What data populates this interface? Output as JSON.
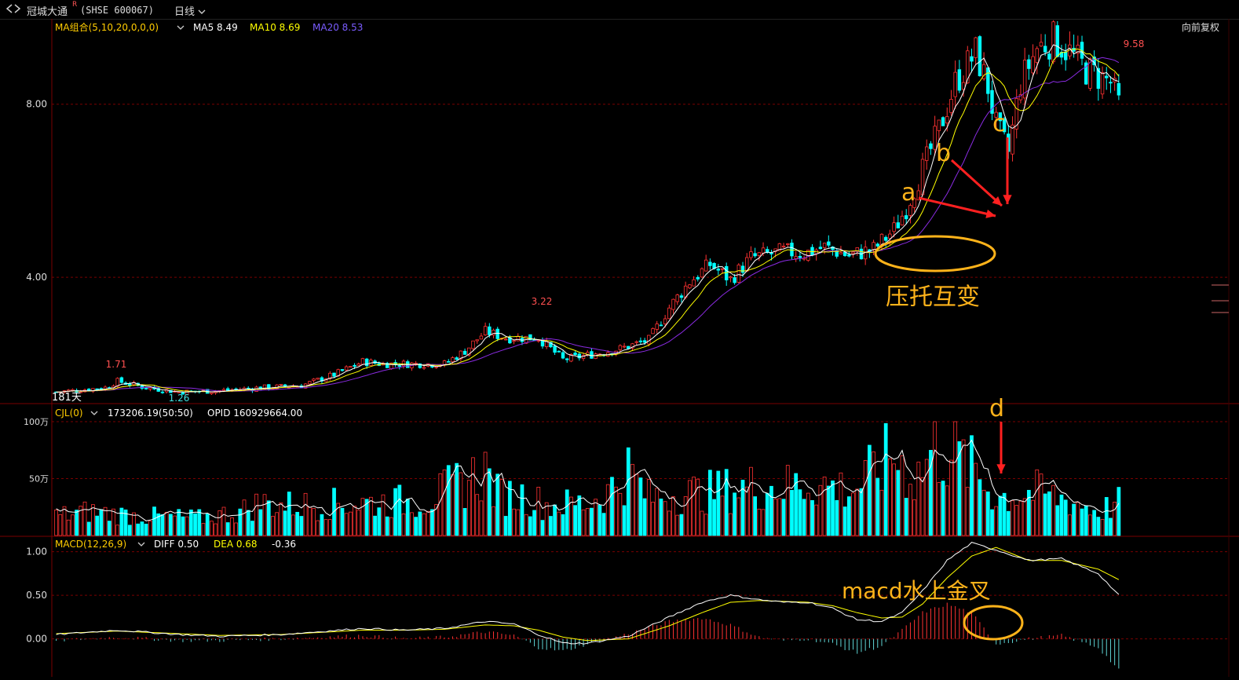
{
  "header": {
    "title": "冠城大通",
    "title_mark": "R",
    "code": "(SHSE 600067)",
    "period": "日线",
    "adjust_label": "向前复权"
  },
  "icons": {
    "back": "back-arrows-icon",
    "dropdown": "chevron-down-icon"
  },
  "colors": {
    "up": "#ff3232",
    "up_fill": "#000000",
    "down": "#00ffff",
    "ma5": "#ffffff",
    "ma10": "#ffff00",
    "ma20": "#8a2be2",
    "grid": "#7a0000",
    "axis_label": "#dddddd",
    "annotation": "#ffb31a",
    "arrow": "#ff2020"
  },
  "indicators": {
    "ma": {
      "label": "MA组合(5,10,20,0,0,0)",
      "ma5": "MA5 8.49",
      "ma10": "MA10 8.69",
      "ma20": "MA20 8.53"
    },
    "volume": {
      "label": "CJL(0)",
      "value": "173206.19(50:50)",
      "opid": "OPID 160929664.00"
    },
    "macd": {
      "label": "MACD(12,26,9)",
      "diff": "DIFF 0.50",
      "dea": "DEA 0.68",
      "macd": "-0.36"
    }
  },
  "annotations": {
    "a": "a",
    "b": "b",
    "c": "c",
    "d": "d",
    "zone": "压托互变",
    "cross": "macd水上金叉",
    "days": "181天"
  },
  "chart_data": [
    {
      "type": "candlestick",
      "series_count": 181,
      "y_ticks": [
        "8.00",
        "4.00"
      ],
      "y_tick_values": [
        8.0,
        4.0
      ],
      "ylim": [
        1.1,
        9.9
      ],
      "marked_high": "9.58",
      "marked_low": "1.26",
      "local_highs": [
        "1.71",
        "3.22"
      ],
      "close_path": [
        [
          0,
          1.35
        ],
        [
          12,
          1.45
        ],
        [
          15,
          1.6
        ],
        [
          22,
          1.45
        ],
        [
          30,
          1.35
        ],
        [
          40,
          1.38
        ],
        [
          50,
          1.45
        ],
        [
          60,
          1.5
        ],
        [
          68,
          1.75
        ],
        [
          75,
          2.05
        ],
        [
          80,
          2.0
        ],
        [
          88,
          2.0
        ],
        [
          95,
          2.0
        ],
        [
          100,
          2.3
        ],
        [
          105,
          2.75
        ],
        [
          110,
          2.6
        ],
        [
          118,
          2.6
        ],
        [
          124,
          2.1
        ],
        [
          130,
          2.2
        ],
        [
          138,
          2.35
        ],
        [
          145,
          2.55
        ],
        [
          150,
          3.3
        ],
        [
          155,
          3.9
        ],
        [
          160,
          4.3
        ],
        [
          165,
          3.95
        ],
        [
          170,
          4.45
        ],
        [
          178,
          4.6
        ],
        [
          183,
          4.55
        ],
        [
          188,
          4.7
        ],
        [
          194,
          4.5
        ],
        [
          200,
          4.65
        ],
        [
          205,
          5.1
        ],
        [
          208,
          5.6
        ],
        [
          212,
          6.5
        ],
        [
          216,
          7.4
        ],
        [
          220,
          8.5
        ],
        [
          225,
          9.2
        ],
        [
          228,
          8.4
        ],
        [
          230,
          7.5
        ],
        [
          233,
          6.9
        ],
        [
          236,
          8.5
        ],
        [
          240,
          9.3
        ],
        [
          244,
          9.5
        ],
        [
          248,
          9.2
        ],
        [
          252,
          8.8
        ],
        [
          256,
          8.6
        ],
        [
          258,
          8.5
        ],
        [
          260,
          8.0
        ]
      ],
      "ma5_last": 8.49,
      "ma10_last": 8.69,
      "ma20_last": 8.53
    },
    {
      "type": "bar",
      "name": "CJL",
      "y_ticks": [
        "100万",
        "50万"
      ],
      "ylim": [
        0,
        100
      ],
      "unit": "万",
      "level_path": [
        [
          0,
          18
        ],
        [
          8,
          22
        ],
        [
          20,
          18
        ],
        [
          35,
          16
        ],
        [
          45,
          22
        ],
        [
          50,
          30
        ],
        [
          55,
          28
        ],
        [
          60,
          28
        ],
        [
          75,
          30
        ],
        [
          90,
          32
        ],
        [
          100,
          50
        ],
        [
          105,
          60
        ],
        [
          108,
          38
        ],
        [
          115,
          36
        ],
        [
          120,
          28
        ],
        [
          130,
          30
        ],
        [
          135,
          40
        ],
        [
          140,
          60
        ],
        [
          145,
          35
        ],
        [
          150,
          38
        ],
        [
          160,
          40
        ],
        [
          170,
          45
        ],
        [
          178,
          45
        ],
        [
          185,
          48
        ],
        [
          195,
          42
        ],
        [
          205,
          75
        ],
        [
          210,
          52
        ],
        [
          215,
          80
        ],
        [
          220,
          75
        ],
        [
          225,
          58
        ],
        [
          230,
          35
        ],
        [
          240,
          40
        ],
        [
          250,
          30
        ],
        [
          255,
          22
        ],
        [
          260,
          30
        ]
      ]
    },
    {
      "type": "line",
      "name": "MACD",
      "y_ticks": [
        "1.00",
        "0.50",
        "0.00"
      ],
      "ylim": [
        -0.4,
        1.15
      ],
      "diff_path": [
        [
          0,
          0.05
        ],
        [
          15,
          0.1
        ],
        [
          30,
          0.05
        ],
        [
          40,
          0.03
        ],
        [
          55,
          0.05
        ],
        [
          75,
          0.12
        ],
        [
          85,
          0.1
        ],
        [
          95,
          0.12
        ],
        [
          105,
          0.2
        ],
        [
          112,
          0.17
        ],
        [
          118,
          0.05
        ],
        [
          124,
          -0.05
        ],
        [
          130,
          -0.05
        ],
        [
          140,
          0.03
        ],
        [
          150,
          0.25
        ],
        [
          158,
          0.42
        ],
        [
          165,
          0.5
        ],
        [
          172,
          0.45
        ],
        [
          178,
          0.42
        ],
        [
          184,
          0.42
        ],
        [
          190,
          0.35
        ],
        [
          196,
          0.22
        ],
        [
          202,
          0.2
        ],
        [
          207,
          0.3
        ],
        [
          212,
          0.55
        ],
        [
          218,
          0.9
        ],
        [
          224,
          1.1
        ],
        [
          230,
          1.02
        ],
        [
          238,
          0.9
        ],
        [
          246,
          0.92
        ],
        [
          255,
          0.75
        ],
        [
          260,
          0.5
        ]
      ],
      "dea_path": [
        [
          0,
          0.06
        ],
        [
          15,
          0.09
        ],
        [
          30,
          0.06
        ],
        [
          40,
          0.04
        ],
        [
          55,
          0.05
        ],
        [
          75,
          0.1
        ],
        [
          85,
          0.1
        ],
        [
          95,
          0.11
        ],
        [
          105,
          0.16
        ],
        [
          112,
          0.15
        ],
        [
          118,
          0.1
        ],
        [
          124,
          0.02
        ],
        [
          130,
          -0.02
        ],
        [
          140,
          0.0
        ],
        [
          150,
          0.15
        ],
        [
          158,
          0.3
        ],
        [
          165,
          0.42
        ],
        [
          172,
          0.44
        ],
        [
          178,
          0.43
        ],
        [
          184,
          0.42
        ],
        [
          190,
          0.38
        ],
        [
          196,
          0.3
        ],
        [
          202,
          0.24
        ],
        [
          207,
          0.25
        ],
        [
          212,
          0.4
        ],
        [
          218,
          0.7
        ],
        [
          224,
          0.95
        ],
        [
          230,
          1.05
        ],
        [
          238,
          0.9
        ],
        [
          246,
          0.9
        ],
        [
          255,
          0.8
        ],
        [
          260,
          0.68
        ]
      ],
      "last_diff": 0.5,
      "last_dea": 0.68
    }
  ]
}
